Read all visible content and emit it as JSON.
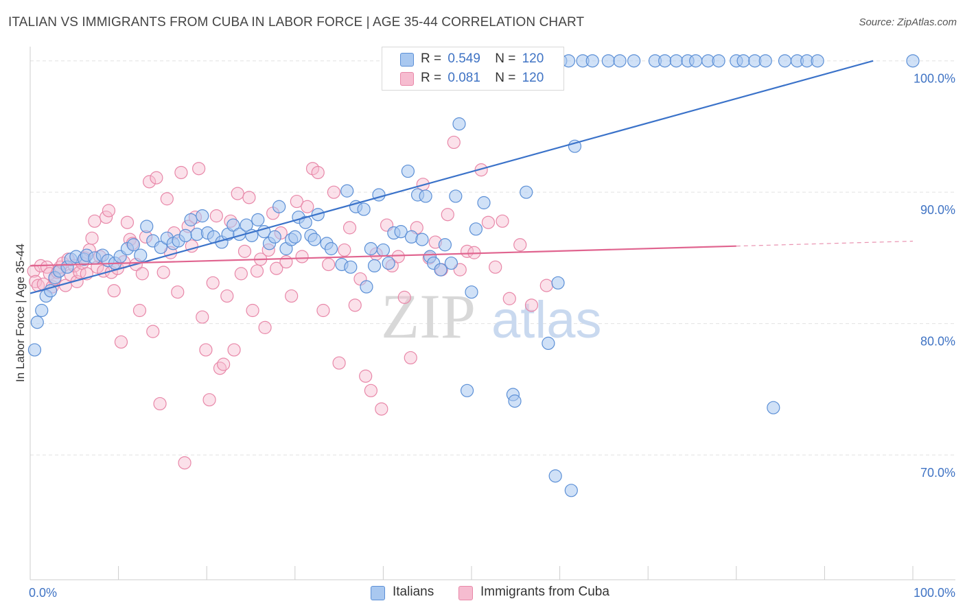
{
  "header": {
    "title": "ITALIAN VS IMMIGRANTS FROM CUBA IN LABOR FORCE | AGE 35-44 CORRELATION CHART",
    "source": "Source: ZipAtlas.com"
  },
  "watermark": {
    "zip": "ZIP",
    "atlas": "atlas"
  },
  "legend": {
    "r_label": "R =",
    "n_label": "N =",
    "rows": [
      {
        "r": "0.549",
        "n": "120"
      },
      {
        "r": "0.081",
        "n": "120"
      }
    ]
  },
  "colors": {
    "blue_fill": "#a9c8f0",
    "blue_stroke": "#5b8fd6",
    "blue_line": "#3a72c9",
    "pink_fill": "#f6bcd0",
    "pink_stroke": "#e887a8",
    "pink_line": "#e0648f",
    "tick_text": "#3f73c4",
    "grid": "#e2e2e2"
  },
  "chart_data": {
    "type": "scatter",
    "title": "ITALIAN VS IMMIGRANTS FROM CUBA IN LABOR FORCE | AGE 35-44 CORRELATION CHART",
    "xlabel": "",
    "ylabel": "In Labor Force | Age 35-44",
    "xlim": [
      0,
      100
    ],
    "ylim": [
      60.5,
      101.5
    ],
    "x_tick_labels": [
      "0.0%",
      "100.0%"
    ],
    "y_ticks": [
      70,
      80,
      90,
      100
    ],
    "y_tick_labels": [
      "70.0%",
      "80.0%",
      "90.0%",
      "100.0%"
    ],
    "grid": true,
    "legend_position": "top-center",
    "series": [
      {
        "name": "Italians",
        "r": 0.549,
        "n": 120,
        "trend": {
          "x0": 0.0,
          "y0": 82.3,
          "x1": 95.5,
          "y1": 100.0,
          "dashed_x1": null
        },
        "points": [
          [
            0.5,
            78.0
          ],
          [
            0.8,
            80.1
          ],
          [
            1.3,
            81.0
          ],
          [
            1.8,
            82.1
          ],
          [
            2.3,
            82.5
          ],
          [
            2.8,
            83.5
          ],
          [
            3.3,
            84.0
          ],
          [
            4.2,
            84.3
          ],
          [
            4.6,
            84.9
          ],
          [
            5.2,
            85.1
          ],
          [
            6.1,
            84.9
          ],
          [
            6.4,
            85.2
          ],
          [
            7.3,
            85.0
          ],
          [
            8.2,
            85.2
          ],
          [
            8.8,
            84.8
          ],
          [
            9.6,
            84.6
          ],
          [
            10.2,
            85.1
          ],
          [
            11.0,
            85.7
          ],
          [
            11.7,
            86.0
          ],
          [
            12.5,
            85.2
          ],
          [
            13.2,
            87.4
          ],
          [
            13.9,
            86.3
          ],
          [
            14.8,
            85.8
          ],
          [
            15.5,
            86.5
          ],
          [
            16.2,
            86.1
          ],
          [
            16.8,
            86.3
          ],
          [
            17.6,
            86.7
          ],
          [
            18.2,
            87.9
          ],
          [
            18.9,
            86.8
          ],
          [
            19.5,
            88.2
          ],
          [
            20.1,
            86.9
          ],
          [
            20.8,
            86.6
          ],
          [
            21.7,
            86.2
          ],
          [
            22.4,
            86.8
          ],
          [
            23.0,
            87.5
          ],
          [
            23.7,
            86.8
          ],
          [
            24.5,
            87.5
          ],
          [
            25.1,
            86.7
          ],
          [
            25.8,
            87.9
          ],
          [
            26.5,
            87.0
          ],
          [
            27.1,
            86.1
          ],
          [
            27.7,
            86.6
          ],
          [
            28.2,
            88.9
          ],
          [
            29.0,
            85.7
          ],
          [
            29.6,
            86.4
          ],
          [
            30.0,
            86.6
          ],
          [
            30.4,
            88.1
          ],
          [
            31.2,
            87.7
          ],
          [
            31.8,
            86.7
          ],
          [
            32.2,
            86.4
          ],
          [
            32.6,
            88.3
          ],
          [
            33.6,
            86.1
          ],
          [
            34.1,
            85.7
          ],
          [
            35.3,
            84.5
          ],
          [
            35.9,
            90.1
          ],
          [
            36.3,
            84.3
          ],
          [
            36.9,
            88.9
          ],
          [
            37.8,
            88.7
          ],
          [
            38.1,
            82.8
          ],
          [
            38.6,
            85.7
          ],
          [
            39.0,
            84.4
          ],
          [
            39.5,
            89.8
          ],
          [
            40.0,
            85.6
          ],
          [
            40.6,
            84.6
          ],
          [
            41.2,
            86.9
          ],
          [
            42.0,
            87.0
          ],
          [
            42.8,
            91.6
          ],
          [
            43.2,
            86.6
          ],
          [
            43.9,
            89.8
          ],
          [
            44.4,
            86.4
          ],
          [
            44.8,
            89.7
          ],
          [
            45.3,
            85.1
          ],
          [
            45.7,
            84.6
          ],
          [
            46.5,
            84.1
          ],
          [
            47.0,
            86.0
          ],
          [
            47.7,
            84.6
          ],
          [
            48.2,
            89.7
          ],
          [
            48.6,
            95.2
          ],
          [
            49.5,
            74.9
          ],
          [
            50.0,
            82.4
          ],
          [
            50.5,
            87.2
          ],
          [
            51.4,
            89.2
          ],
          [
            52.5,
            100.0
          ],
          [
            53.5,
            100.0
          ],
          [
            54.4,
            100.0
          ],
          [
            54.7,
            74.6
          ],
          [
            54.9,
            74.1
          ],
          [
            55.2,
            100.0
          ],
          [
            56.2,
            90.0
          ],
          [
            56.8,
            100.0
          ],
          [
            57.4,
            100.0
          ],
          [
            58.7,
            78.5
          ],
          [
            59.5,
            68.4
          ],
          [
            59.8,
            83.1
          ],
          [
            60.1,
            100.0
          ],
          [
            61.0,
            100.0
          ],
          [
            61.3,
            67.3
          ],
          [
            61.7,
            93.5
          ],
          [
            62.6,
            100.0
          ],
          [
            63.7,
            100.0
          ],
          [
            65.5,
            100.0
          ],
          [
            66.8,
            100.0
          ],
          [
            68.4,
            100.0
          ],
          [
            70.8,
            100.0
          ],
          [
            71.9,
            100.0
          ],
          [
            73.2,
            100.0
          ],
          [
            74.5,
            100.0
          ],
          [
            75.4,
            100.0
          ],
          [
            76.8,
            100.0
          ],
          [
            78.0,
            100.0
          ],
          [
            80.0,
            100.0
          ],
          [
            80.8,
            100.0
          ],
          [
            82.1,
            100.0
          ],
          [
            83.3,
            100.0
          ],
          [
            84.2,
            73.6
          ],
          [
            85.5,
            100.0
          ],
          [
            86.9,
            100.0
          ],
          [
            88.0,
            100.0
          ],
          [
            89.2,
            100.0
          ],
          [
            100.0,
            100.0
          ]
        ]
      },
      {
        "name": "Immigrants from Cuba",
        "r": 0.081,
        "n": 120,
        "trend": {
          "x0": 0.0,
          "y0": 84.4,
          "x1": 80.0,
          "y1": 85.9,
          "dashed_x1": 100.0
        },
        "points": [
          [
            0.4,
            84.0
          ],
          [
            0.6,
            83.2
          ],
          [
            0.9,
            82.9
          ],
          [
            1.2,
            84.4
          ],
          [
            1.5,
            83.0
          ],
          [
            1.9,
            84.3
          ],
          [
            2.2,
            83.8
          ],
          [
            2.5,
            82.8
          ],
          [
            2.8,
            83.4
          ],
          [
            3.1,
            83.9
          ],
          [
            3.4,
            84.3
          ],
          [
            3.7,
            84.6
          ],
          [
            4.0,
            82.9
          ],
          [
            4.3,
            84.9
          ],
          [
            4.6,
            83.7
          ],
          [
            5.0,
            84.4
          ],
          [
            5.3,
            83.2
          ],
          [
            5.6,
            83.9
          ],
          [
            5.9,
            84.6
          ],
          [
            6.2,
            85.0
          ],
          [
            6.4,
            83.8
          ],
          [
            6.7,
            85.6
          ],
          [
            7.0,
            86.5
          ],
          [
            7.3,
            87.8
          ],
          [
            7.6,
            84.3
          ],
          [
            7.9,
            85.1
          ],
          [
            8.3,
            84.0
          ],
          [
            8.6,
            88.1
          ],
          [
            8.9,
            88.6
          ],
          [
            9.2,
            83.9
          ],
          [
            9.5,
            82.5
          ],
          [
            9.9,
            84.2
          ],
          [
            10.3,
            78.6
          ],
          [
            10.6,
            84.7
          ],
          [
            11.0,
            87.7
          ],
          [
            11.3,
            86.4
          ],
          [
            11.6,
            86.1
          ],
          [
            12.0,
            84.5
          ],
          [
            12.4,
            81.0
          ],
          [
            12.7,
            83.8
          ],
          [
            13.1,
            86.6
          ],
          [
            13.5,
            90.8
          ],
          [
            13.9,
            79.4
          ],
          [
            14.3,
            91.1
          ],
          [
            14.7,
            73.9
          ],
          [
            15.1,
            83.9
          ],
          [
            15.5,
            89.5
          ],
          [
            15.9,
            85.4
          ],
          [
            16.3,
            86.9
          ],
          [
            16.7,
            82.4
          ],
          [
            17.1,
            91.5
          ],
          [
            17.5,
            69.4
          ],
          [
            17.9,
            87.4
          ],
          [
            18.3,
            85.9
          ],
          [
            18.7,
            88.1
          ],
          [
            19.1,
            91.8
          ],
          [
            19.5,
            80.5
          ],
          [
            19.9,
            78.0
          ],
          [
            20.3,
            74.2
          ],
          [
            20.7,
            83.1
          ],
          [
            21.1,
            88.2
          ],
          [
            21.5,
            76.6
          ],
          [
            21.9,
            76.9
          ],
          [
            22.3,
            82.1
          ],
          [
            22.7,
            87.8
          ],
          [
            23.1,
            78.0
          ],
          [
            23.5,
            89.9
          ],
          [
            23.9,
            83.8
          ],
          [
            24.3,
            85.5
          ],
          [
            24.8,
            89.6
          ],
          [
            25.2,
            81.0
          ],
          [
            25.7,
            84.0
          ],
          [
            26.1,
            84.9
          ],
          [
            26.6,
            79.7
          ],
          [
            27.0,
            85.6
          ],
          [
            27.5,
            88.4
          ],
          [
            27.9,
            84.2
          ],
          [
            28.4,
            86.9
          ],
          [
            29.0,
            84.7
          ],
          [
            29.6,
            82.1
          ],
          [
            30.2,
            89.3
          ],
          [
            30.8,
            85.1
          ],
          [
            31.4,
            88.9
          ],
          [
            32.0,
            91.8
          ],
          [
            32.6,
            91.5
          ],
          [
            33.2,
            81.0
          ],
          [
            33.8,
            84.5
          ],
          [
            34.4,
            90.0
          ],
          [
            35.0,
            77.0
          ],
          [
            35.6,
            85.6
          ],
          [
            36.2,
            87.3
          ],
          [
            36.8,
            81.4
          ],
          [
            37.4,
            83.4
          ],
          [
            38.0,
            76.0
          ],
          [
            38.6,
            74.9
          ],
          [
            39.2,
            85.3
          ],
          [
            39.8,
            73.5
          ],
          [
            40.4,
            87.5
          ],
          [
            41.0,
            84.4
          ],
          [
            41.7,
            85.1
          ],
          [
            42.4,
            82.0
          ],
          [
            43.1,
            77.4
          ],
          [
            43.8,
            87.3
          ],
          [
            44.5,
            90.6
          ],
          [
            45.2,
            85.0
          ],
          [
            45.9,
            86.2
          ],
          [
            46.6,
            84.1
          ],
          [
            47.3,
            88.3
          ],
          [
            48.0,
            93.8
          ],
          [
            48.7,
            84.1
          ],
          [
            49.5,
            85.5
          ],
          [
            50.3,
            85.4
          ],
          [
            51.1,
            91.7
          ],
          [
            51.9,
            87.7
          ],
          [
            52.7,
            84.3
          ],
          [
            53.5,
            87.8
          ],
          [
            54.3,
            81.9
          ],
          [
            55.5,
            86.0
          ],
          [
            56.8,
            81.4
          ],
          [
            58.5,
            82.9
          ]
        ]
      }
    ]
  },
  "bottom_legend": [
    "Italians",
    "Immigrants from Cuba"
  ]
}
